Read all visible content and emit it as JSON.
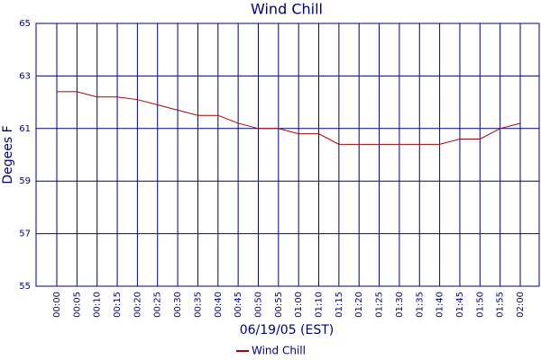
{
  "chart_data": {
    "type": "line",
    "title": "Wind Chill",
    "x_label": "06/19/05 (EST)",
    "y_label": "Degees F",
    "categories": [
      "00:00",
      "00:05",
      "00:10",
      "00:15",
      "00:20",
      "00:25",
      "00:30",
      "00:35",
      "00:40",
      "00:45",
      "00:50",
      "00:55",
      "01:00",
      "01:10",
      "01:15",
      "01:20",
      "01:25",
      "01:30",
      "01:35",
      "01:40",
      "01:45",
      "01:50",
      "01:55",
      "02:00"
    ],
    "series": [
      {
        "name": "Wind Chill",
        "color": "#aa0000",
        "values": [
          62.4,
          62.4,
          62.2,
          62.2,
          62.1,
          61.9,
          61.7,
          61.5,
          61.5,
          61.2,
          61.0,
          61.0,
          60.8,
          60.8,
          60.4,
          60.4,
          60.4,
          60.4,
          60.4,
          60.4,
          60.6,
          60.6,
          61.0,
          61.2
        ]
      }
    ],
    "ylim": [
      55,
      65
    ],
    "yticks": [
      55,
      57,
      59,
      61,
      63,
      65
    ],
    "grid": true,
    "grid_color": "#000080",
    "legend": "bottom"
  }
}
